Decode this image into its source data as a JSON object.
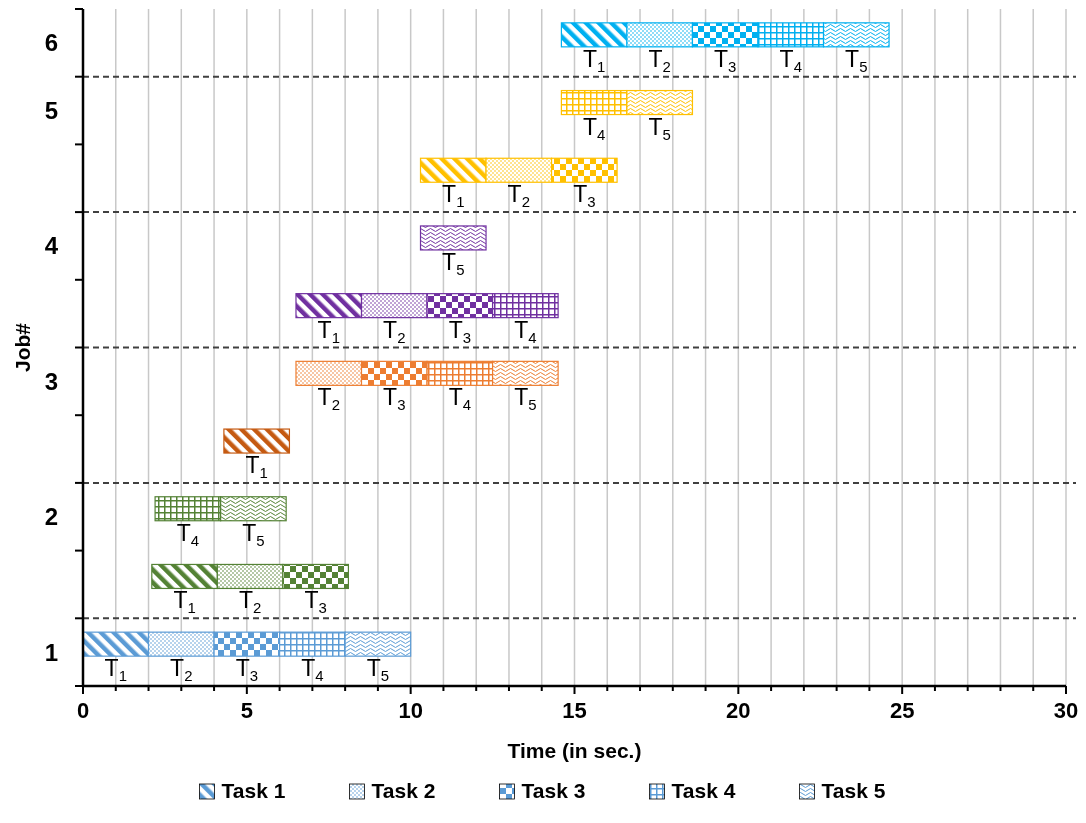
{
  "chart_data": {
    "type": "bar",
    "orientation": "horizontal",
    "xlabel": "Time (in sec.)",
    "ylabel": "Job#",
    "categories": [
      "6",
      "5",
      null,
      "4",
      null,
      "3",
      null,
      "2",
      null,
      "1"
    ],
    "xlim": [
      0,
      30
    ],
    "xticks": [
      0,
      {
        "value": 1,
        "label": null
      },
      {
        "value": 2,
        "label": null
      },
      {
        "value": 3,
        "label": null
      },
      {
        "value": 4,
        "label": null
      },
      5,
      {
        "value": 6,
        "label": null
      },
      {
        "value": 7,
        "label": null
      },
      {
        "value": 8,
        "label": null
      },
      {
        "value": 9,
        "label": null
      },
      10,
      {
        "value": 11,
        "label": null
      },
      {
        "value": 12,
        "label": null
      },
      {
        "value": 13,
        "label": null
      },
      {
        "value": 14,
        "label": null
      },
      15,
      {
        "value": 16,
        "label": null
      },
      {
        "value": 17,
        "label": null
      },
      {
        "value": 18,
        "label": null
      },
      {
        "value": 19,
        "label": null
      },
      20,
      {
        "value": 21,
        "label": null
      },
      {
        "value": 22,
        "label": null
      },
      {
        "value": 23,
        "label": null
      },
      {
        "value": 24,
        "label": null
      },
      25,
      {
        "value": 26,
        "label": null
      },
      {
        "value": 27,
        "label": null
      },
      {
        "value": 28,
        "label": null
      },
      {
        "value": 29,
        "label": null
      },
      30
    ],
    "grid": "x",
    "legend": "bottom",
    "series": [
      {
        "name": "Task 1",
        "color": "#5b9bd5",
        "base": [
          14.6,
          null,
          10.3,
          null,
          6.5,
          null,
          4.3,
          null,
          2.1,
          0
        ],
        "values": [
          2,
          null,
          2,
          null,
          2,
          null,
          2,
          null,
          2,
          2
        ],
        "colors": [
          "#00b0f0",
          null,
          "#ffc000",
          null,
          "#7030a0",
          null,
          "#c55a11",
          null,
          "#548235",
          "#5b9bd5"
        ]
      },
      {
        "name": "Task 2",
        "color": "#5b9bd5",
        "base": [
          16.6,
          null,
          12.3,
          null,
          8.5,
          6.5,
          null,
          null,
          4.1,
          2
        ],
        "values": [
          2,
          null,
          2,
          null,
          2,
          2,
          null,
          null,
          2,
          2
        ],
        "colors": [
          "#00b0f0",
          null,
          "#ffc000",
          null,
          "#7030a0",
          "#ed7d31",
          null,
          null,
          "#548235",
          "#5b9bd5"
        ]
      },
      {
        "name": "Task 3",
        "color": "#5b9bd5",
        "base": [
          18.6,
          null,
          14.3,
          null,
          10.5,
          8.5,
          null,
          null,
          6.1,
          4
        ],
        "values": [
          2,
          null,
          2,
          null,
          2,
          2,
          null,
          null,
          2,
          2
        ],
        "colors": [
          "#00b0f0",
          null,
          "#ffc000",
          null,
          "#7030a0",
          "#ed7d31",
          null,
          null,
          "#548235",
          "#5b9bd5"
        ]
      },
      {
        "name": "Task 4",
        "color": "#5b9bd5",
        "base": [
          20.6,
          14.6,
          null,
          null,
          12.5,
          10.5,
          null,
          2.2,
          null,
          6
        ],
        "values": [
          2,
          2,
          null,
          null,
          2,
          2,
          null,
          2,
          null,
          2
        ],
        "colors": [
          "#00b0f0",
          "#ffc000",
          null,
          null,
          "#7030a0",
          "#ed7d31",
          null,
          "#548235",
          null,
          "#5b9bd5"
        ]
      },
      {
        "name": "Task 5",
        "color": "#5b9bd5",
        "base": [
          22.6,
          16.6,
          null,
          10.3,
          null,
          12.5,
          null,
          4.2,
          null,
          8
        ],
        "values": [
          2,
          2,
          null,
          2,
          null,
          2,
          null,
          2,
          null,
          2
        ],
        "colors": [
          "#00b0f0",
          "#ffc000",
          null,
          "#7030a0",
          null,
          "#ed7d31",
          null,
          "#548235",
          null,
          "#5b9bd5"
        ]
      }
    ],
    "annotations": [
      {
        "text": "T$_{1}$",
        "x": 15.6,
        "y": "6"
      },
      {
        "text": "T$_{2}$",
        "x": 17.6,
        "y": "6"
      },
      {
        "text": "T$_{3}$",
        "x": 19.6,
        "y": "6"
      },
      {
        "text": "T$_{4}$",
        "x": 21.6,
        "y": "6"
      },
      {
        "text": "T$_{5}$",
        "x": 23.6,
        "y": "6"
      },
      {
        "text": "T$_{4}$",
        "x": 15.6,
        "y": "5"
      },
      {
        "text": "T$_{5}$",
        "x": 17.6,
        "y": "5"
      },
      "T$_{1}$",
      "T$_{2}$",
      "T$_{3}$",
      {
        "text": "T$_{5}$",
        "x": 11.3,
        "y": "4"
      },
      "T$_{1}$",
      "T$_{2}$",
      "T$_{3}$",
      "T$_{4}$",
      {
        "text": "T$_{2}$",
        "x": 7.5,
        "y": "3"
      },
      {
        "text": "T$_{3}$",
        "x": 9.5,
        "y": "3"
      },
      {
        "text": "T$_{4}$",
        "x": 11.5,
        "y": "3"
      },
      {
        "text": "T$_{5}$",
        "x": 13.5,
        "y": "3"
      },
      "T$_{1}$",
      {
        "text": "T$_{4}$",
        "x": 3.2,
        "y": "2"
      },
      {
        "text": "T$_{5}$",
        "x": 5.2,
        "y": "2"
      },
      "T$_{1}$",
      "T$_{2}$",
      "T$_{3}$",
      {
        "text": "T$_{1}$",
        "x": 1,
        "y": "1"
      },
      {
        "text": "T$_{2}$",
        "x": 3,
        "y": "1"
      },
      {
        "text": "T$_{3}$",
        "x": 5,
        "y": "1"
      },
      {
        "text": "T$_{4}$",
        "x": 7,
        "y": "1"
      },
      {
        "text": "T$_{5}$",
        "x": 9,
        "y": "1"
      }
    ]
  }
}
